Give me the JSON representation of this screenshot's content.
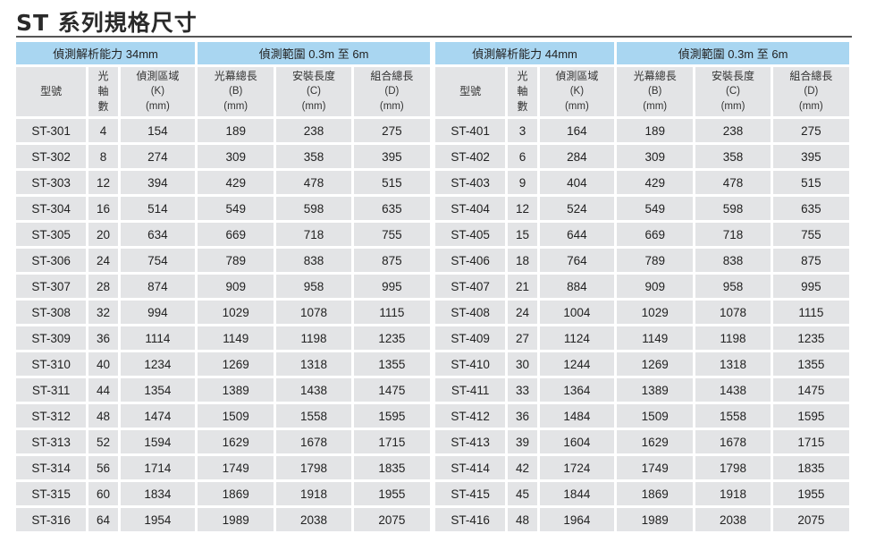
{
  "title": "ST 系列規格尺寸",
  "tables": [
    {
      "group1": "偵測解析能力 34mm",
      "group2": "偵測範圍 0.3m 至 6m",
      "headers": {
        "model": "型號",
        "axis": [
          "光",
          "軸",
          "數"
        ],
        "k": [
          "偵測區域",
          "(K)",
          "(mm)"
        ],
        "b": [
          "光幕總長",
          "(B)",
          "(mm)"
        ],
        "c": [
          "安裝長度",
          "(C)",
          "(mm)"
        ],
        "d": [
          "組合總長",
          "(D)",
          "(mm)"
        ]
      },
      "rows": [
        [
          "ST-301",
          "4",
          "154",
          "189",
          "238",
          "275"
        ],
        [
          "ST-302",
          "8",
          "274",
          "309",
          "358",
          "395"
        ],
        [
          "ST-303",
          "12",
          "394",
          "429",
          "478",
          "515"
        ],
        [
          "ST-304",
          "16",
          "514",
          "549",
          "598",
          "635"
        ],
        [
          "ST-305",
          "20",
          "634",
          "669",
          "718",
          "755"
        ],
        [
          "ST-306",
          "24",
          "754",
          "789",
          "838",
          "875"
        ],
        [
          "ST-307",
          "28",
          "874",
          "909",
          "958",
          "995"
        ],
        [
          "ST-308",
          "32",
          "994",
          "1029",
          "1078",
          "1115"
        ],
        [
          "ST-309",
          "36",
          "1114",
          "1149",
          "1198",
          "1235"
        ],
        [
          "ST-310",
          "40",
          "1234",
          "1269",
          "1318",
          "1355"
        ],
        [
          "ST-311",
          "44",
          "1354",
          "1389",
          "1438",
          "1475"
        ],
        [
          "ST-312",
          "48",
          "1474",
          "1509",
          "1558",
          "1595"
        ],
        [
          "ST-313",
          "52",
          "1594",
          "1629",
          "1678",
          "1715"
        ],
        [
          "ST-314",
          "56",
          "1714",
          "1749",
          "1798",
          "1835"
        ],
        [
          "ST-315",
          "60",
          "1834",
          "1869",
          "1918",
          "1955"
        ],
        [
          "ST-316",
          "64",
          "1954",
          "1989",
          "2038",
          "2075"
        ]
      ]
    },
    {
      "group1": "偵測解析能力 44mm",
      "group2": "偵測範圍 0.3m 至 6m",
      "headers": {
        "model": "型號",
        "axis": [
          "光",
          "軸",
          "數"
        ],
        "k": [
          "偵測區域",
          "(K)",
          "(mm)"
        ],
        "b": [
          "光幕總長",
          "(B)",
          "(mm)"
        ],
        "c": [
          "安裝長度",
          "(C)",
          "(mm)"
        ],
        "d": [
          "組合總長",
          "(D)",
          "(mm)"
        ]
      },
      "rows": [
        [
          "ST-401",
          "3",
          "164",
          "189",
          "238",
          "275"
        ],
        [
          "ST-402",
          "6",
          "284",
          "309",
          "358",
          "395"
        ],
        [
          "ST-403",
          "9",
          "404",
          "429",
          "478",
          "515"
        ],
        [
          "ST-404",
          "12",
          "524",
          "549",
          "598",
          "635"
        ],
        [
          "ST-405",
          "15",
          "644",
          "669",
          "718",
          "755"
        ],
        [
          "ST-406",
          "18",
          "764",
          "789",
          "838",
          "875"
        ],
        [
          "ST-407",
          "21",
          "884",
          "909",
          "958",
          "995"
        ],
        [
          "ST-408",
          "24",
          "1004",
          "1029",
          "1078",
          "1115"
        ],
        [
          "ST-409",
          "27",
          "1124",
          "1149",
          "1198",
          "1235"
        ],
        [
          "ST-410",
          "30",
          "1244",
          "1269",
          "1318",
          "1355"
        ],
        [
          "ST-411",
          "33",
          "1364",
          "1389",
          "1438",
          "1475"
        ],
        [
          "ST-412",
          "36",
          "1484",
          "1509",
          "1558",
          "1595"
        ],
        [
          "ST-413",
          "39",
          "1604",
          "1629",
          "1678",
          "1715"
        ],
        [
          "ST-414",
          "42",
          "1724",
          "1749",
          "1798",
          "1835"
        ],
        [
          "ST-415",
          "45",
          "1844",
          "1869",
          "1918",
          "1955"
        ],
        [
          "ST-416",
          "48",
          "1964",
          "1989",
          "2038",
          "2075"
        ]
      ]
    }
  ]
}
